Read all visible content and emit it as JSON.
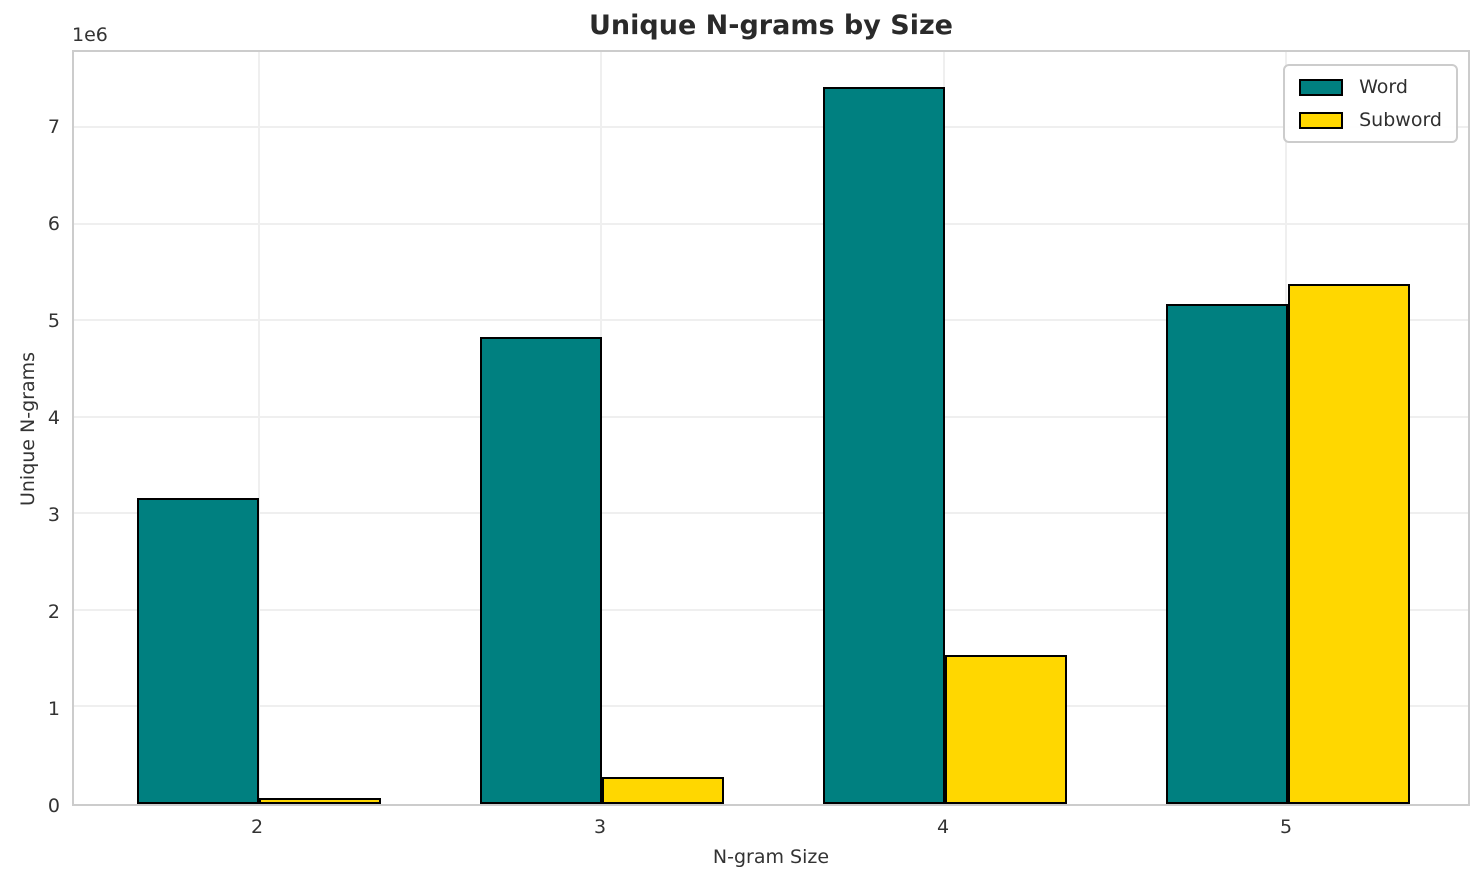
{
  "figure": {
    "title": "Unique N-grams by Size",
    "xlabel": "N-gram Size",
    "ylabel": "Unique N-grams",
    "y_offset_label": "1e6"
  },
  "chart_data": {
    "type": "bar",
    "title": "Unique N-grams by Size",
    "xlabel": "N-gram Size",
    "ylabel": "Unique N-grams",
    "categories": [
      "2",
      "3",
      "4",
      "5"
    ],
    "series": [
      {
        "name": "Word",
        "color": "#008080",
        "values": [
          3150000,
          4810000,
          7390000,
          5150000
        ]
      },
      {
        "name": "Subword",
        "color": "#FFD700",
        "values": [
          60000,
          280000,
          1540000,
          5360000
        ]
      }
    ],
    "ylim": [
      0,
      7790000
    ],
    "yticks": [
      0,
      1,
      2,
      3,
      4,
      5,
      6,
      7
    ],
    "ytick_scale": 1000000,
    "y_offset_label": "1e6",
    "grid": true,
    "legend_position": "upper right",
    "bar_edge_color": "#000000"
  },
  "colors": {
    "word": "#008080",
    "subword": "#FFD700",
    "bar_edge": "#000000",
    "grid": "#efefef",
    "spine": "#cccccc",
    "text": "#333333",
    "title": "#2a2a2a",
    "background": "#ffffff"
  }
}
